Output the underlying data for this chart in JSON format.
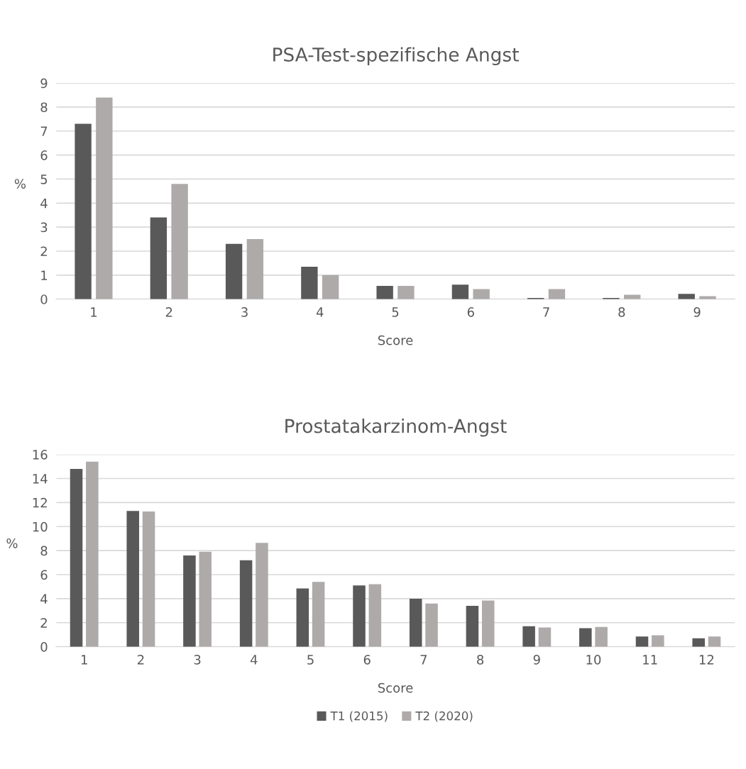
{
  "chart_data": [
    {
      "type": "bar",
      "title": "PSA-Test-spezifische Angst",
      "xlabel": "Score",
      "ylabel": "%",
      "categories": [
        "1",
        "2",
        "3",
        "4",
        "5",
        "6",
        "7",
        "8",
        "9"
      ],
      "series": [
        {
          "color": "#595959",
          "values": [
            7.3,
            3.4,
            2.3,
            1.35,
            0.55,
            0.6,
            0.05,
            0.05,
            0.22
          ]
        },
        {
          "color": "#aeaaaa",
          "values": [
            8.4,
            4.8,
            2.5,
            1.0,
            0.55,
            0.42,
            0.42,
            0.18,
            0.12
          ]
        }
      ],
      "ylim": [
        0,
        9
      ],
      "yticks": [
        0,
        1,
        2,
        3,
        4,
        5,
        6,
        7,
        8,
        9
      ],
      "grid": "y"
    },
    {
      "type": "bar",
      "title": "Prostatakarzinom-Angst",
      "xlabel": "Score",
      "ylabel": "%",
      "categories": [
        "1",
        "2",
        "3",
        "4",
        "5",
        "6",
        "7",
        "8",
        "9",
        "10",
        "11",
        "12"
      ],
      "series": [
        {
          "name": "T1 (2015)",
          "color": "#595959",
          "values": [
            14.8,
            11.3,
            7.6,
            7.2,
            4.85,
            5.1,
            4.0,
            3.4,
            1.7,
            1.55,
            0.85,
            0.7
          ]
        },
        {
          "name": "T2 (2020)",
          "color": "#aeaaaa",
          "values": [
            15.4,
            11.25,
            7.9,
            8.65,
            5.4,
            5.2,
            3.6,
            3.85,
            1.6,
            1.65,
            0.95,
            0.85
          ]
        }
      ],
      "ylim": [
        0,
        16
      ],
      "yticks": [
        0,
        2,
        4,
        6,
        8,
        10,
        12,
        14,
        16
      ],
      "grid": "y",
      "legend": "bottom"
    }
  ]
}
